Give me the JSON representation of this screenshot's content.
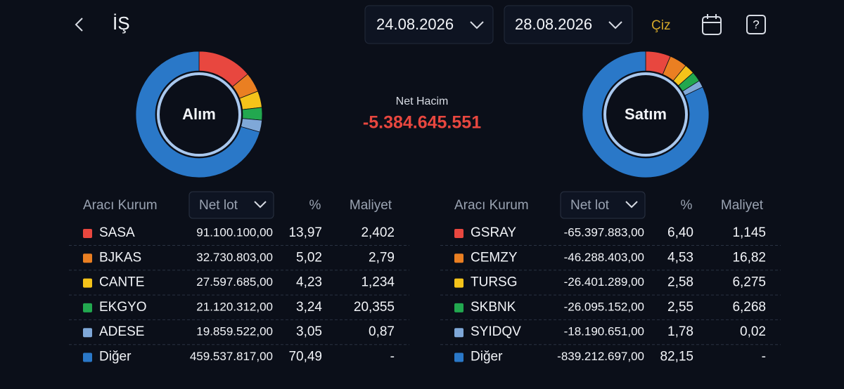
{
  "header": {
    "title": "İŞ",
    "start_date": "24.08.2026",
    "end_date": "28.08.2026",
    "action": "Çiz"
  },
  "summary": {
    "label": "Net Hacim",
    "value": "-5.384.645.551"
  },
  "buy": {
    "title": "Alım",
    "columns": [
      "Aracı Kurum",
      "Net lot",
      "%",
      "Maliyet"
    ],
    "rows": [
      {
        "name": "SASA",
        "color": "#e8473f",
        "lot": "91.100.100,00",
        "pct": {
          "value": 13.97,
          "label": "13,97"
        },
        "cost": "2,402"
      },
      {
        "name": "BJKAS",
        "color": "#ea7f22",
        "lot": "32.730.803,00",
        "pct": {
          "value": 5.02,
          "label": "5,02"
        },
        "cost": "2,79"
      },
      {
        "name": "CANTE",
        "color": "#f4c31a",
        "lot": "27.597.685,00",
        "pct": {
          "value": 4.23,
          "label": "4,23"
        },
        "cost": "1,234"
      },
      {
        "name": "EKGYO",
        "color": "#22a84f",
        "lot": "21.120.312,00",
        "pct": {
          "value": 3.24,
          "label": "3,24"
        },
        "cost": "20,355"
      },
      {
        "name": "ADESE",
        "color": "#7fa8d8",
        "lot": "19.859.522,00",
        "pct": {
          "value": 3.05,
          "label": "3,05"
        },
        "cost": "0,87"
      },
      {
        "name": "Diğer",
        "color": "#2a78c8",
        "lot": "459.537.817,00",
        "pct": {
          "value": 70.49,
          "label": "70,49"
        },
        "cost": "-"
      }
    ]
  },
  "sell": {
    "title": "Satım",
    "columns": [
      "Aracı Kurum",
      "Net lot",
      "%",
      "Maliyet"
    ],
    "rows": [
      {
        "name": "GSRAY",
        "color": "#e8473f",
        "lot": "-65.397.883,00",
        "pct": {
          "value": 6.4,
          "label": "6,40"
        },
        "cost": "1,145"
      },
      {
        "name": "CEMZY",
        "color": "#ea7f22",
        "lot": "-46.288.403,00",
        "pct": {
          "value": 4.53,
          "label": "4,53"
        },
        "cost": "16,82"
      },
      {
        "name": "TURSG",
        "color": "#f4c31a",
        "lot": "-26.401.289,00",
        "pct": {
          "value": 2.58,
          "label": "2,58"
        },
        "cost": "6,275"
      },
      {
        "name": "SKBNK",
        "color": "#22a84f",
        "lot": "-26.095.152,00",
        "pct": {
          "value": 2.55,
          "label": "2,55"
        },
        "cost": "6,268"
      },
      {
        "name": "SYIDQV",
        "color": "#7fa8d8",
        "lot": "-18.190.651,00",
        "pct": {
          "value": 1.78,
          "label": "1,78"
        },
        "cost": "0,02"
      },
      {
        "name": "Diğer",
        "color": "#2a78c8",
        "lot": "-839.212.697,00",
        "pct": {
          "value": 82.15,
          "label": "82,15"
        },
        "cost": "-"
      }
    ]
  }
}
